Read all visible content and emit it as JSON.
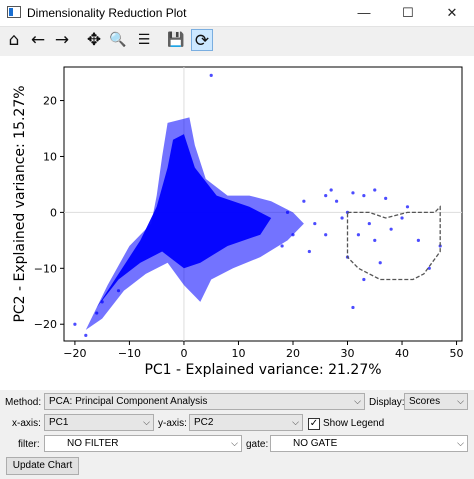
{
  "window": {
    "title": "Dimensionality Reduction Plot",
    "minimize": "—",
    "maximize": "☐",
    "close": "✕"
  },
  "toolbar": {
    "home": "⌂",
    "back": "←",
    "forward": "→",
    "pan": "✥",
    "zoom": "🔍",
    "configure": "☰",
    "save": "💾",
    "lasso": "⟳"
  },
  "chart_data": {
    "type": "scatter",
    "xlabel": "PC1 - Explained variance: 21.27%",
    "ylabel": "PC2 - Explained variance: 15.27%",
    "xlim": [
      -22,
      51
    ],
    "ylim": [
      -23,
      26
    ],
    "xticks": [
      -20,
      -10,
      0,
      10,
      20,
      30,
      40,
      50
    ],
    "yticks": [
      -20,
      -10,
      0,
      10,
      20
    ],
    "grid": "zero-lines",
    "point_color": "#0000ff",
    "outlier_points": [
      [
        5,
        24.5
      ],
      [
        -12,
        -14
      ],
      [
        -15,
        -16
      ],
      [
        -18,
        -22
      ],
      [
        -16,
        -18
      ],
      [
        -20,
        -20
      ],
      [
        26,
        3
      ],
      [
        28,
        2
      ],
      [
        31,
        3.5
      ],
      [
        33,
        3
      ],
      [
        35,
        4
      ],
      [
        37,
        2.5
      ],
      [
        30,
        0
      ],
      [
        29,
        -1
      ],
      [
        32,
        -4
      ],
      [
        30,
        -8
      ],
      [
        31,
        -17
      ],
      [
        35,
        -5
      ],
      [
        38,
        -3
      ],
      [
        41,
        1
      ],
      [
        43,
        -5
      ],
      [
        47,
        -6
      ],
      [
        45,
        -10
      ],
      [
        33,
        -12
      ],
      [
        36,
        -9
      ],
      [
        23,
        -7
      ],
      [
        26,
        -4
      ],
      [
        40,
        -1
      ],
      [
        22,
        2
      ],
      [
        24,
        -2
      ],
      [
        27,
        4
      ],
      [
        34,
        -2
      ],
      [
        20,
        -4
      ],
      [
        19,
        0
      ],
      [
        18,
        -6
      ]
    ],
    "selection_lasso": [
      [
        30,
        0
      ],
      [
        34,
        0
      ],
      [
        37,
        -1
      ],
      [
        41,
        0
      ],
      [
        46,
        0
      ],
      [
        47,
        1
      ],
      [
        47,
        -7
      ],
      [
        44,
        -11
      ],
      [
        42,
        -12
      ],
      [
        36,
        -12
      ],
      [
        32,
        -10
      ],
      [
        30,
        -8
      ],
      [
        30,
        -3
      ],
      [
        30,
        0
      ]
    ]
  },
  "controls": {
    "method_label": "Method:",
    "method_value": "PCA: Principal Component Analysis",
    "display_label": "Display:",
    "display_value": "Scores",
    "xaxis_label": "x-axis:",
    "xaxis_value": "PC1",
    "yaxis_label": "y-axis:",
    "yaxis_value": "PC2",
    "show_legend_label": "Show Legend",
    "show_legend_checked": "✓",
    "filter_label": "filter:",
    "filter_value": "NO FILTER",
    "gate_label": "gate:",
    "gate_value": "NO GATE",
    "update_button": "Update Chart"
  }
}
